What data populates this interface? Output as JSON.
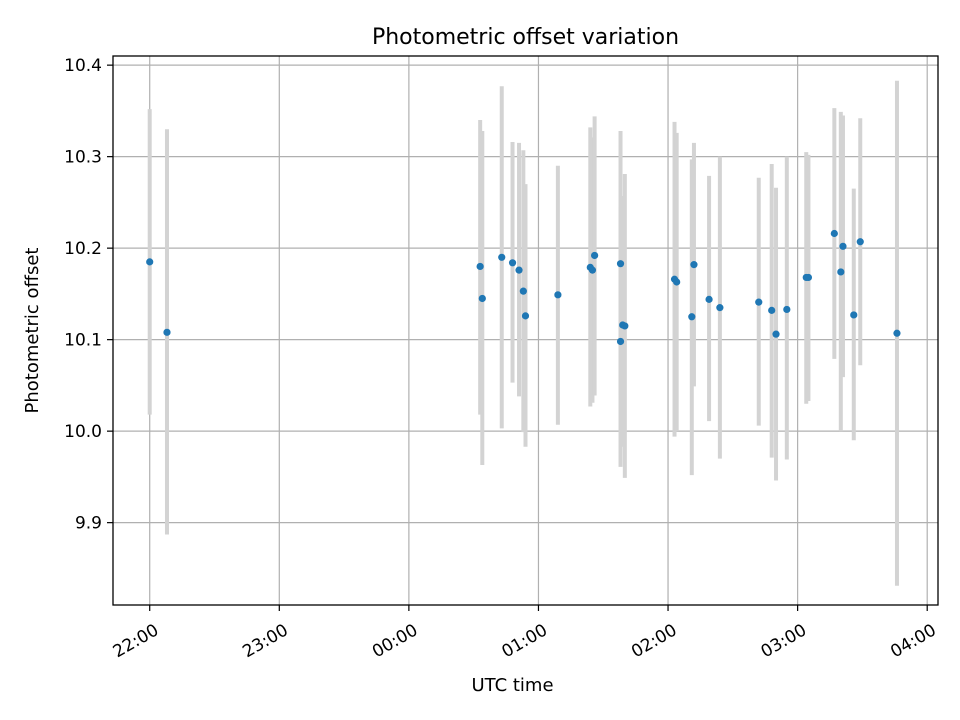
{
  "chart_data": {
    "type": "scatter",
    "title": "Photometric offset variation",
    "xlabel": "UTC time",
    "ylabel": "Photometric offset",
    "xlim": [
      "21:43",
      "04:05"
    ],
    "ylim": [
      9.81,
      10.41
    ],
    "grid": true,
    "x_tick_labels": [
      "22:00",
      "23:00",
      "00:00",
      "01:00",
      "02:00",
      "03:00",
      "04:00"
    ],
    "x_ticks": [
      "22:00",
      "23:00",
      "00:00",
      "01:00",
      "02:00",
      "03:00",
      "04:00"
    ],
    "y_ticks": [
      9.9,
      10.0,
      10.1,
      10.2,
      10.3,
      10.4
    ],
    "y_tick_labels": [
      "9.9",
      "10.0",
      "10.1",
      "10.2",
      "10.3",
      "10.4"
    ],
    "colors": {
      "point": "#1f77b4",
      "errorbar": "#d3d3d3",
      "grid": "#b0b0b0"
    },
    "points": [
      {
        "x": "22:00",
        "y": 10.185,
        "ylow": 10.018,
        "yhigh": 10.352
      },
      {
        "x": "22:08",
        "y": 10.108,
        "ylow": 9.887,
        "yhigh": 10.33
      },
      {
        "x": "00:33",
        "y": 10.18,
        "ylow": 10.018,
        "yhigh": 10.34
      },
      {
        "x": "00:34",
        "y": 10.145,
        "ylow": 9.963,
        "yhigh": 10.328
      },
      {
        "x": "00:43",
        "y": 10.19,
        "ylow": 10.003,
        "yhigh": 10.377
      },
      {
        "x": "00:48",
        "y": 10.184,
        "ylow": 10.053,
        "yhigh": 10.316
      },
      {
        "x": "00:51",
        "y": 10.176,
        "ylow": 10.038,
        "yhigh": 10.315
      },
      {
        "x": "00:53",
        "y": 10.153,
        "ylow": 9.999,
        "yhigh": 10.307
      },
      {
        "x": "00:54",
        "y": 10.126,
        "ylow": 9.983,
        "yhigh": 10.27
      },
      {
        "x": "01:09",
        "y": 10.149,
        "ylow": 10.007,
        "yhigh": 10.29
      },
      {
        "x": "01:24",
        "y": 10.179,
        "ylow": 10.027,
        "yhigh": 10.332
      },
      {
        "x": "01:25",
        "y": 10.176,
        "ylow": 10.031,
        "yhigh": 10.321
      },
      {
        "x": "01:26",
        "y": 10.192,
        "ylow": 10.039,
        "yhigh": 10.344
      },
      {
        "x": "01:38",
        "y": 10.183,
        "ylow": 10.039,
        "yhigh": 10.328
      },
      {
        "x": "01:38",
        "y": 10.098,
        "ylow": 9.961,
        "yhigh": 10.245
      },
      {
        "x": "01:39",
        "y": 10.116,
        "ylow": 9.983,
        "yhigh": 10.257
      },
      {
        "x": "01:40",
        "y": 10.115,
        "ylow": 9.949,
        "yhigh": 10.281
      },
      {
        "x": "02:03",
        "y": 10.166,
        "ylow": 9.994,
        "yhigh": 10.338
      },
      {
        "x": "02:04",
        "y": 10.163,
        "ylow": 10.0,
        "yhigh": 10.326
      },
      {
        "x": "02:11",
        "y": 10.125,
        "ylow": 9.952,
        "yhigh": 10.297
      },
      {
        "x": "02:12",
        "y": 10.182,
        "ylow": 10.049,
        "yhigh": 10.315
      },
      {
        "x": "02:19",
        "y": 10.144,
        "ylow": 10.011,
        "yhigh": 10.279
      },
      {
        "x": "02:24",
        "y": 10.135,
        "ylow": 9.97,
        "yhigh": 10.3
      },
      {
        "x": "02:42",
        "y": 10.141,
        "ylow": 10.006,
        "yhigh": 10.277
      },
      {
        "x": "02:48",
        "y": 10.132,
        "ylow": 9.971,
        "yhigh": 10.292
      },
      {
        "x": "02:50",
        "y": 10.106,
        "ylow": 9.946,
        "yhigh": 10.266
      },
      {
        "x": "02:55",
        "y": 10.133,
        "ylow": 9.969,
        "yhigh": 10.3
      },
      {
        "x": "03:04",
        "y": 10.168,
        "ylow": 10.03,
        "yhigh": 10.305
      },
      {
        "x": "03:05",
        "y": 10.168,
        "ylow": 10.033,
        "yhigh": 10.302
      },
      {
        "x": "03:17",
        "y": 10.216,
        "ylow": 10.079,
        "yhigh": 10.353
      },
      {
        "x": "03:20",
        "y": 10.174,
        "ylow": 10.0,
        "yhigh": 10.349
      },
      {
        "x": "03:21",
        "y": 10.202,
        "ylow": 10.059,
        "yhigh": 10.345
      },
      {
        "x": "03:26",
        "y": 10.127,
        "ylow": 9.99,
        "yhigh": 10.265
      },
      {
        "x": "03:29",
        "y": 10.207,
        "ylow": 10.072,
        "yhigh": 10.342
      },
      {
        "x": "03:46",
        "y": 10.107,
        "ylow": 9.831,
        "yhigh": 10.383
      }
    ]
  }
}
